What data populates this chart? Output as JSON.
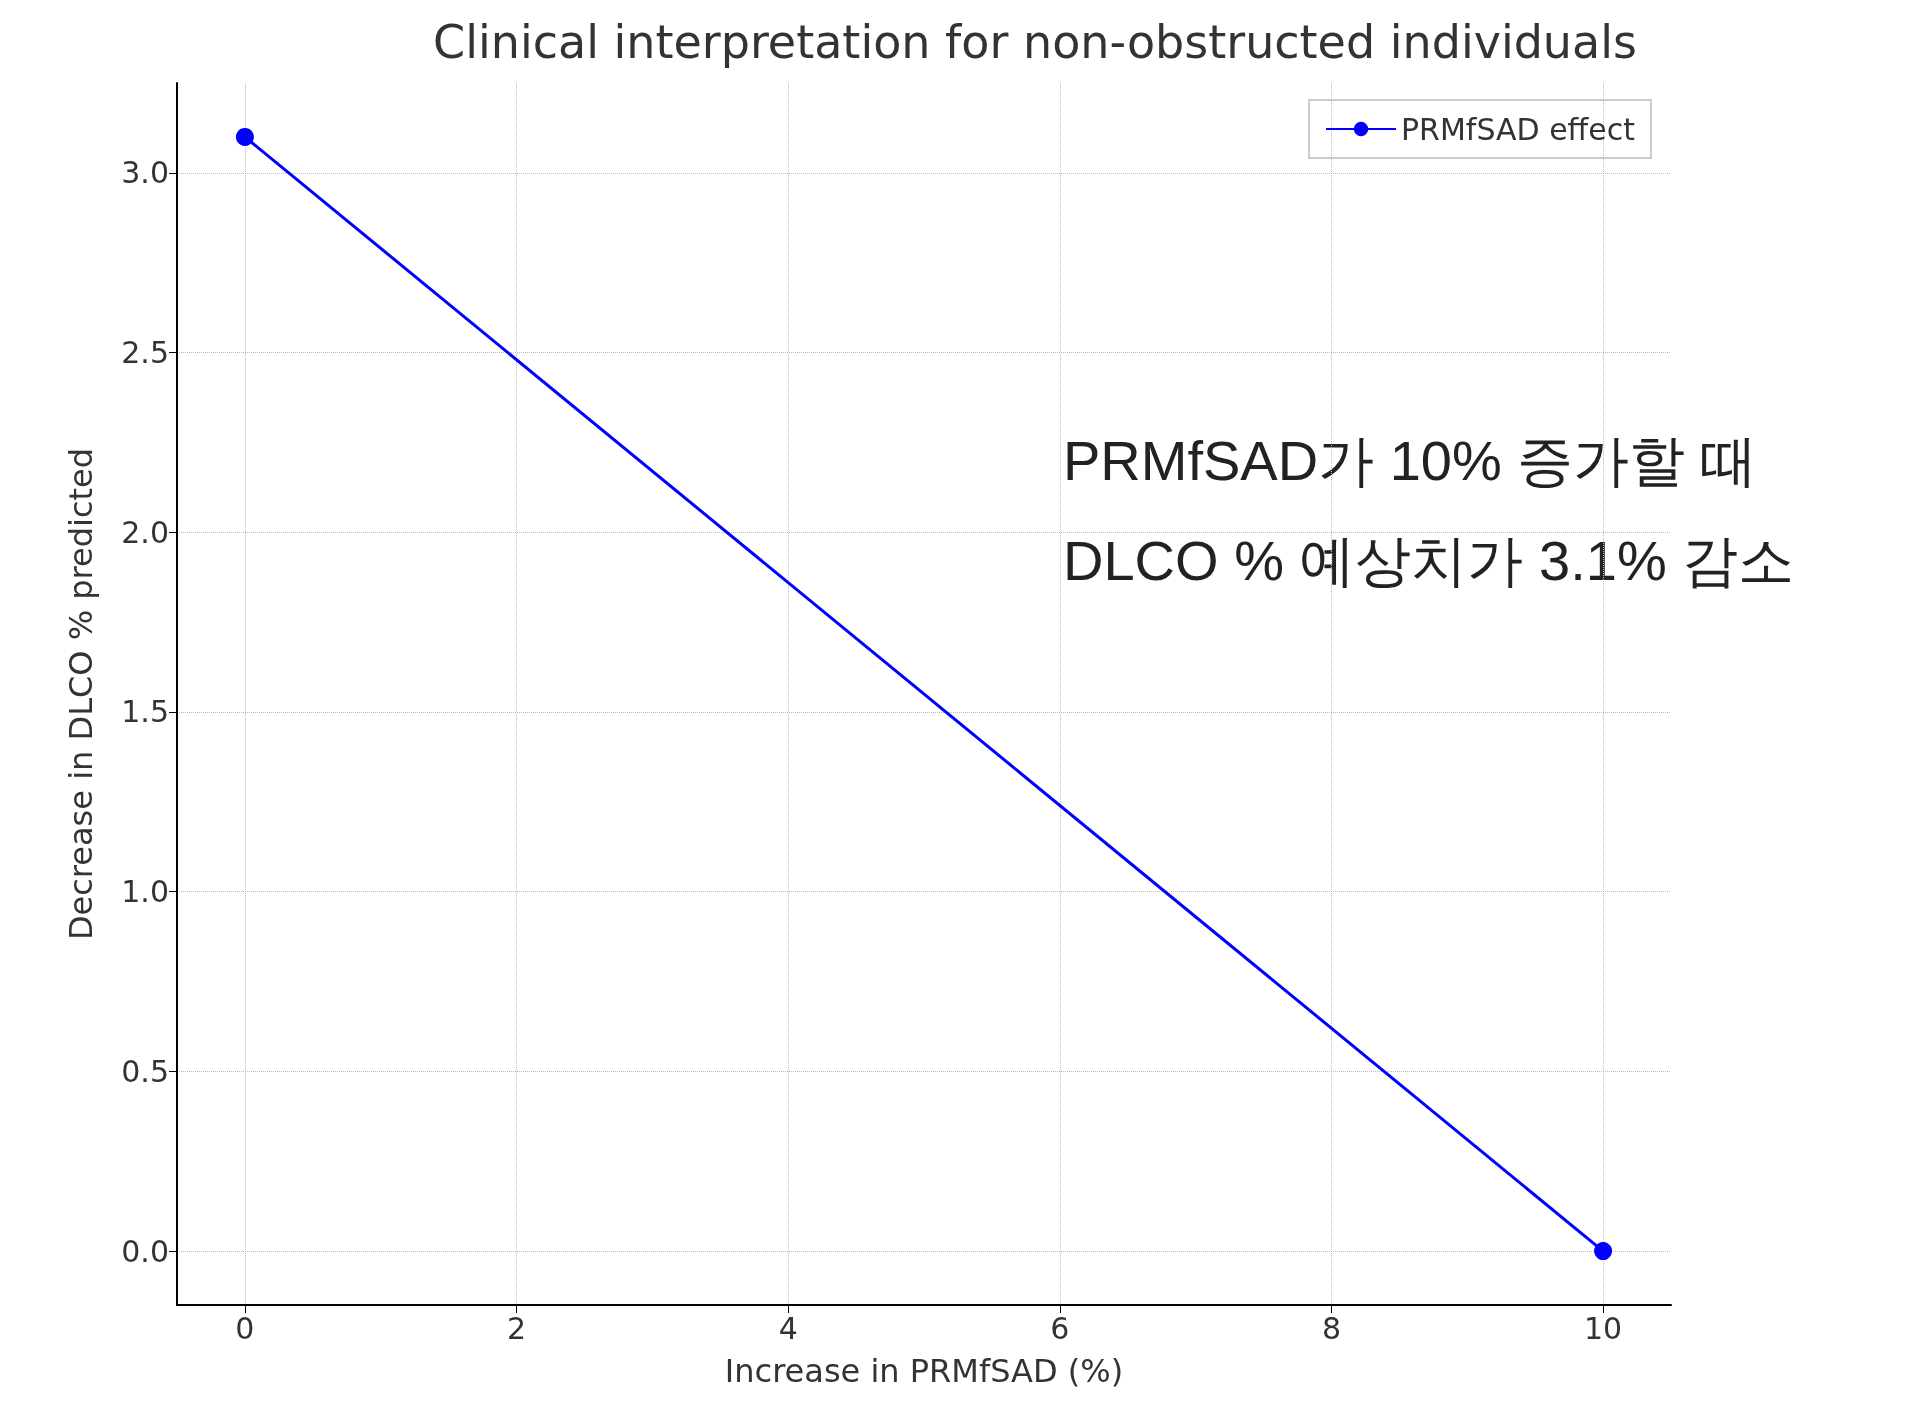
{
  "chart_data": {
    "type": "line",
    "title": "Clinical interpretation for non-obstructed individuals",
    "xlabel": "Increase in PRMfSAD (%)",
    "ylabel": "Decrease in DLCO % predicted",
    "x": [
      0,
      10
    ],
    "series": [
      {
        "name": "PRMfSAD effect",
        "color": "#0000ff",
        "values": [
          3.1,
          0
        ]
      }
    ],
    "xlim": [
      -0.5,
      10.5
    ],
    "xticks": [
      0,
      2,
      4,
      6,
      8,
      10
    ],
    "ylim": [
      -0.15,
      3.25
    ],
    "yticks": [
      {
        "value": 0,
        "label": "0.0"
      },
      {
        "value": 0.5,
        "label": "0.5"
      },
      {
        "value": 1,
        "label": "1.0"
      },
      {
        "value": 1.5,
        "label": "1.5"
      },
      {
        "value": 2,
        "label": "2.0"
      },
      {
        "value": 2.5,
        "label": "2.5"
      },
      {
        "value": 3,
        "label": "3.0"
      }
    ],
    "grid": true,
    "legend": "top right",
    "marker": "circle",
    "line_style": "solid",
    "annotations": [
      "PRMfSAD가 10% 증가할 때\nDLCO % 예상치가 3.1% 감소"
    ]
  }
}
